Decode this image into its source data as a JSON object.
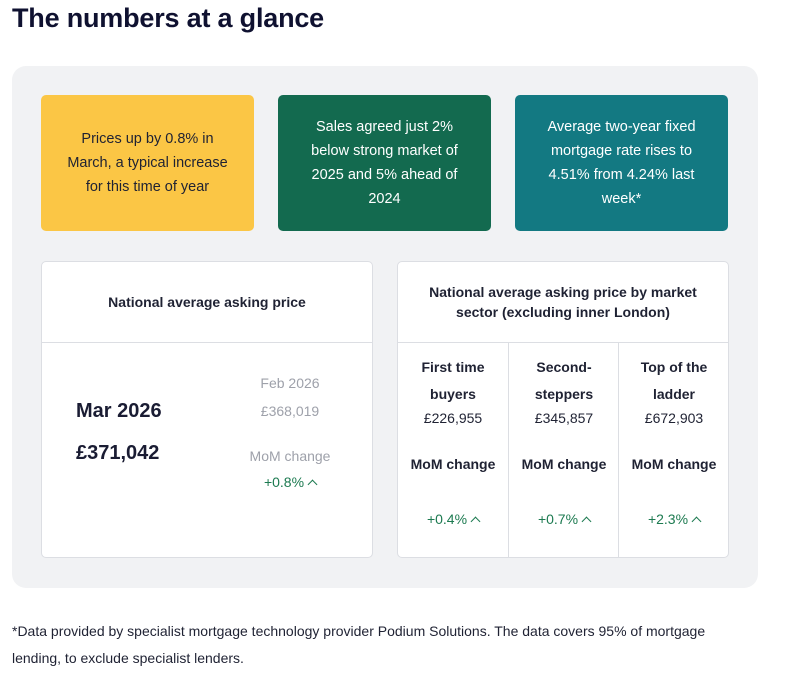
{
  "title": "The numbers at a glance",
  "highlights": [
    {
      "text": "Prices up by 0.8% in March, a typical increase for this time of year",
      "color": "#fbc645"
    },
    {
      "text": "Sales agreed just 2% below strong market of 2025 and 5% ahead of 2024",
      "color": "#136a4f"
    },
    {
      "text": "Average two-year fixed mortgage rate rises to 4.51% from 4.24% last week*",
      "color": "#137982"
    }
  ],
  "national": {
    "heading": "National average asking price",
    "current_month": "Mar 2026",
    "current_price": "£371,042",
    "previous_month": "Feb 2026",
    "previous_price": "£368,019",
    "mom_label": "MoM change",
    "mom_value": "+0.8%"
  },
  "sectors": {
    "heading": "National average asking price by market sector (excluding inner London)",
    "items": [
      {
        "name": "First time buyers",
        "price": "£226,955",
        "mom_label": "MoM change",
        "mom_value": "+0.4%"
      },
      {
        "name": "Second-steppers",
        "price": "£345,857",
        "mom_label": "MoM change",
        "mom_value": "+0.7%"
      },
      {
        "name": "Top of the ladder",
        "price": "£672,903",
        "mom_label": "MoM change",
        "mom_value": "+2.3%"
      }
    ]
  },
  "footnote": "*Data provided by specialist mortgage technology provider Podium Solutions. The data covers 95% of mortgage lending, to exclude specialist lenders.",
  "colors": {
    "positive": "#1c7a50",
    "muted": "#9ea1aa",
    "panel_bg": "#f1f2f4"
  }
}
